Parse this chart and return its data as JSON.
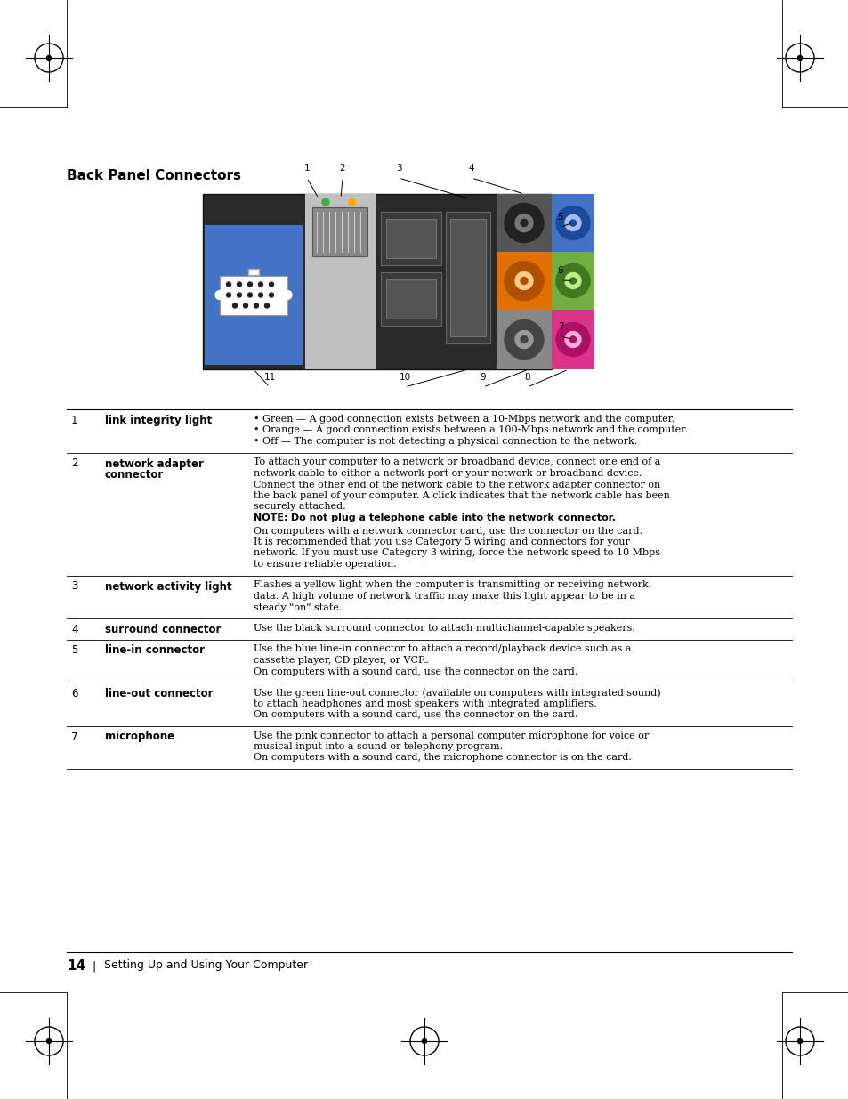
{
  "title": "Back Panel Connectors",
  "page_num": "14",
  "page_footer": "Setting Up and Using Your Computer",
  "bg_color": "#ffffff",
  "table_rows": [
    {
      "num": "1",
      "label": "link integrity light",
      "description_lines": [
        "• Green — A good connection exists between a 10-Mbps network and the computer.",
        "• Orange — A good connection exists between a 100-Mbps network and the computer.",
        "• Off — The computer is not detecting a physical connection to the network."
      ],
      "note": null,
      "extra_lines": []
    },
    {
      "num": "2",
      "label": "network adapter\nconnector",
      "description_lines": [
        "To attach your computer to a network or broadband device, connect one end of a",
        "network cable to either a network port or your network or broadband device.",
        "Connect the other end of the network cable to the network adapter connector on",
        "the back panel of your computer. A click indicates that the network cable has been",
        "securely attached."
      ],
      "note": "Do not plug a telephone cable into the network connector.",
      "extra_lines": [
        "On computers with a network connector card, use the connector on the card.",
        "It is recommended that you use Category 5 wiring and connectors for your",
        "network. If you must use Category 3 wiring, force the network speed to 10 Mbps",
        "to ensure reliable operation."
      ]
    },
    {
      "num": "3",
      "label": "network activity light",
      "description_lines": [
        "Flashes a yellow light when the computer is transmitting or receiving network",
        "data. A high volume of network traffic may make this light appear to be in a",
        "steady \"on\" state."
      ],
      "note": null,
      "extra_lines": []
    },
    {
      "num": "4",
      "label": "surround connector",
      "description_lines": [
        "Use the black surround connector to attach multichannel-capable speakers."
      ],
      "note": null,
      "extra_lines": []
    },
    {
      "num": "5",
      "label": "line-in connector",
      "description_lines": [
        "Use the blue line-in connector to attach a record/playback device such as a",
        "cassette player, CD player, or VCR.",
        "On computers with a sound card, use the connector on the card."
      ],
      "note": null,
      "extra_lines": []
    },
    {
      "num": "6",
      "label": "line-out connector",
      "description_lines": [
        "Use the green line-out connector (available on computers with integrated sound)",
        "to attach headphones and most speakers with integrated amplifiers.",
        "On computers with a sound card, use the connector on the card."
      ],
      "note": null,
      "extra_lines": []
    },
    {
      "num": "7",
      "label": "microphone",
      "description_lines": [
        "Use the pink connector to attach a personal computer microphone for voice or",
        "musical input into a sound or telephony program.",
        "On computers with a sound card, the microphone connector is on the card."
      ],
      "note": null,
      "extra_lines": []
    }
  ]
}
